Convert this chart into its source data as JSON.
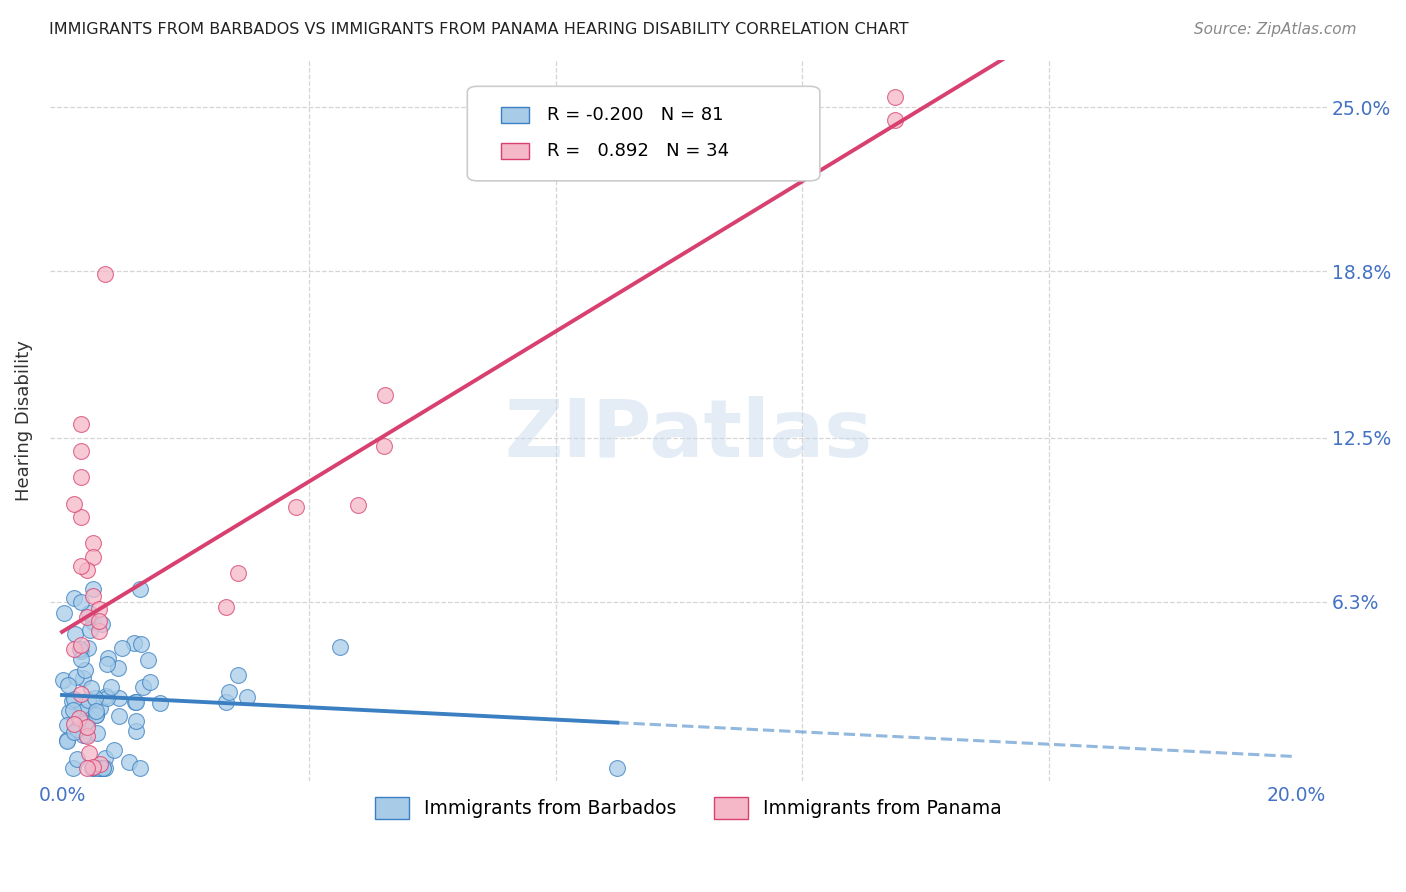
{
  "title": "IMMIGRANTS FROM BARBADOS VS IMMIGRANTS FROM PANAMA HEARING DISABILITY CORRELATION CHART",
  "source": "Source: ZipAtlas.com",
  "ylabel": "Hearing Disability",
  "xlim": [
    -0.002,
    0.205
  ],
  "ylim": [
    -0.005,
    0.268
  ],
  "ytick_vals": [
    0.063,
    0.125,
    0.188,
    0.25
  ],
  "ytick_labels": [
    "6.3%",
    "12.5%",
    "18.8%",
    "25.0%"
  ],
  "xtick_vals": [
    0.0,
    0.2
  ],
  "xtick_labels": [
    "0.0%",
    "20.0%"
  ],
  "watermark": "ZIPatlas",
  "r_blue": "-0.200",
  "n_blue": "81",
  "r_pink": "0.892",
  "n_pink": "34",
  "color_blue_fill": "#a8cce8",
  "color_blue_edge": "#3a7fc1",
  "color_pink_fill": "#f5b8c8",
  "color_pink_edge": "#d84070",
  "color_blue_line": "#3a7fc1",
  "color_pink_line": "#d84070",
  "bg": "#ffffff",
  "grid_color": "#d5d5d5"
}
